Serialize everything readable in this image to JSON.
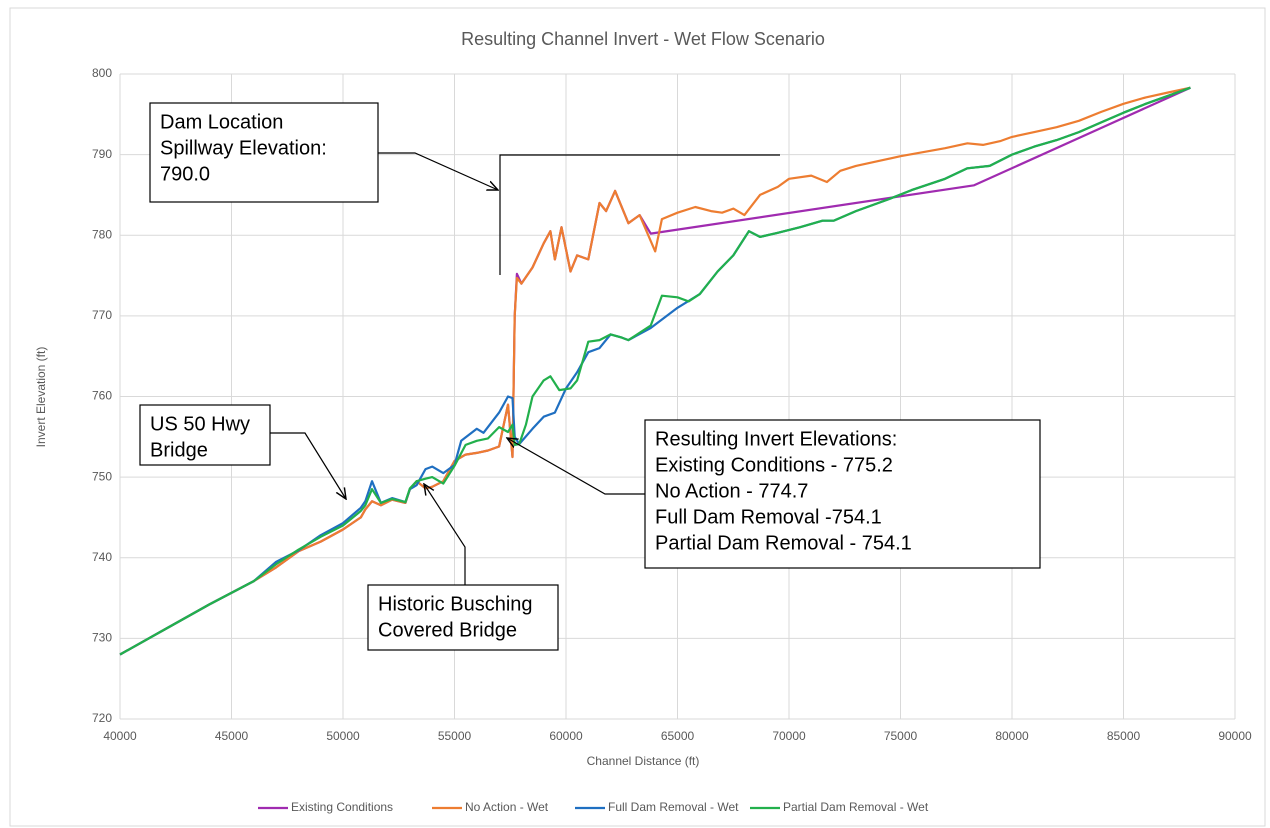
{
  "chart_data": {
    "type": "line",
    "title": "Resulting Channel Invert - Wet Flow Scenario",
    "x_label": "Channel Distance (ft)",
    "y_label": "Invert Elevation (ft)",
    "xlim": [
      40000,
      90000
    ],
    "xticks": [
      40000,
      45000,
      50000,
      55000,
      60000,
      65000,
      70000,
      75000,
      80000,
      85000,
      90000
    ],
    "ylim": [
      720,
      800
    ],
    "yticks": [
      720,
      730,
      740,
      750,
      760,
      770,
      780,
      790,
      800
    ],
    "grid": true,
    "legend": "bottom",
    "series": [
      {
        "name": "Existing Conditions",
        "color": "#a02bb0",
        "x": [
          40000,
          42000,
          44000,
          46000,
          47000,
          48000,
          49000,
          50000,
          50800,
          51000,
          51300,
          51700,
          52200,
          52800,
          53000,
          53300,
          53700,
          54000,
          54500,
          55000,
          55500,
          56000,
          56500,
          57000,
          57400,
          57600,
          57700,
          57800,
          58000,
          58500,
          59000,
          59300,
          59500,
          59800,
          60200,
          60500,
          61000,
          61500,
          61800,
          62200,
          62800,
          63300,
          63800,
          78300,
          88000
        ],
        "values": [
          728,
          731.1,
          734.2,
          737.1,
          738.8,
          740.8,
          742,
          743.5,
          745,
          746,
          747,
          746.5,
          747.2,
          746.8,
          748.5,
          749.5,
          748.6,
          748.8,
          749.5,
          752,
          752.8,
          753,
          753.3,
          753.8,
          759,
          752.5,
          770,
          775.2,
          774,
          776,
          779,
          780.5,
          777,
          781,
          775.5,
          777.5,
          777,
          784,
          783,
          785.5,
          781.5,
          782.5,
          780.2,
          786.2,
          798.3
        ]
      },
      {
        "name": "No Action - Wet",
        "color": "#ed7d31",
        "x": [
          40000,
          42000,
          44000,
          46000,
          47000,
          48000,
          49000,
          50000,
          50800,
          51000,
          51300,
          51700,
          52200,
          52800,
          53000,
          53300,
          53700,
          54000,
          54500,
          55000,
          55500,
          56000,
          56500,
          57000,
          57400,
          57600,
          57700,
          57800,
          58000,
          58500,
          59000,
          59300,
          59500,
          59800,
          60200,
          60500,
          61000,
          61500,
          61800,
          62200,
          62800,
          63300,
          64000,
          64300,
          65000,
          65800,
          66500,
          67000,
          67500,
          68000,
          68700,
          69500,
          70000,
          71000,
          71700,
          72300,
          73000,
          74000,
          75000,
          76000,
          77000,
          78000,
          78700,
          79500,
          80000,
          81000,
          82000,
          83000,
          84000,
          85000,
          86000,
          87000,
          88000
        ],
        "values": [
          728,
          731.1,
          734.2,
          737.1,
          738.8,
          740.8,
          742,
          743.5,
          745,
          746,
          747,
          746.5,
          747.2,
          746.8,
          748.5,
          749.5,
          748.6,
          748.8,
          749.5,
          752,
          752.8,
          753,
          753.3,
          753.8,
          759,
          752.5,
          770,
          774.7,
          774,
          776,
          779,
          780.5,
          777,
          781,
          775.5,
          777.5,
          777,
          784,
          783,
          785.5,
          781.5,
          782.5,
          778,
          782,
          782.8,
          783.5,
          783,
          782.8,
          783.3,
          782.5,
          785,
          786,
          787,
          787.4,
          786.6,
          788,
          788.6,
          789.2,
          789.8,
          790.3,
          790.8,
          791.4,
          791.2,
          791.7,
          792.2,
          792.8,
          793.4,
          794.2,
          795.3,
          796.3,
          797.1,
          797.7,
          798.3
        ]
      },
      {
        "name": "Full Dam Removal - Wet",
        "color": "#1f6fc1",
        "x": [
          40000,
          42000,
          44000,
          46000,
          47000,
          48000,
          49000,
          50000,
          50800,
          51000,
          51300,
          51700,
          52200,
          52800,
          53000,
          53300,
          53700,
          54000,
          54500,
          55000,
          55300,
          56000,
          56300,
          57000,
          57400,
          57600,
          57700,
          57900,
          58500,
          59000,
          59500,
          60000,
          60500,
          61000,
          61500,
          62000,
          62500,
          62800,
          63800,
          65000,
          66000,
          66800,
          67500,
          68200,
          68700,
          69500,
          70500,
          71500,
          72000,
          73000,
          74500,
          75500,
          77000,
          78000,
          79000,
          80000,
          81000,
          82000,
          83000,
          84000,
          85000,
          86000,
          87000,
          88000
        ],
        "values": [
          728,
          731.1,
          734.2,
          737.1,
          739.5,
          740.9,
          742.8,
          744.3,
          746.2,
          747,
          749.5,
          746.8,
          747.4,
          746.9,
          748.5,
          749,
          751,
          751.3,
          750.5,
          751.5,
          754.5,
          756,
          755.5,
          758,
          760,
          759.8,
          755,
          754.1,
          756,
          757.5,
          758,
          761,
          763,
          765.5,
          766,
          767.7,
          767.3,
          767,
          768.5,
          771,
          772.7,
          775.5,
          777.5,
          780.5,
          779.8,
          780.3,
          781,
          781.8,
          781.8,
          783,
          784.5,
          785.6,
          787,
          788.3,
          788.6,
          790,
          791,
          791.8,
          792.8,
          794,
          795.2,
          796.3,
          797.3,
          798.3
        ]
      },
      {
        "name": "Partial Dam Removal - Wet",
        "color": "#22b04c",
        "x": [
          40000,
          42000,
          44000,
          46000,
          47000,
          48000,
          49000,
          50000,
          50800,
          51000,
          51300,
          51700,
          52200,
          52800,
          53000,
          53300,
          53700,
          54000,
          54500,
          55000,
          55500,
          56000,
          56500,
          57000,
          57400,
          57600,
          57700,
          57900,
          58200,
          58500,
          59000,
          59300,
          59700,
          60200,
          60500,
          61000,
          61500,
          62000,
          62500,
          62800,
          63800,
          64300,
          65000,
          65500,
          66000,
          66800,
          67500,
          68200,
          68700,
          69500,
          70500,
          71500,
          72000,
          73000,
          74500,
          75500,
          77000,
          78000,
          79000,
          80000,
          81000,
          82000,
          83000,
          84000,
          85000,
          86000,
          87000,
          88000
        ],
        "values": [
          728,
          731.1,
          734.2,
          737.1,
          739.2,
          741,
          742.6,
          744,
          745.8,
          746.5,
          748.5,
          746.8,
          747.3,
          746.9,
          748.6,
          749.5,
          749.8,
          750,
          749.2,
          751.4,
          754,
          754.5,
          754.8,
          756.2,
          755.6,
          756.5,
          754,
          754.1,
          756.5,
          760,
          762,
          762.5,
          760.8,
          761,
          762,
          766.8,
          767,
          767.7,
          767.3,
          767,
          768.8,
          772.5,
          772.3,
          771.8,
          772.7,
          775.5,
          777.5,
          780.5,
          779.8,
          780.3,
          781,
          781.8,
          781.8,
          783,
          784.5,
          785.6,
          787,
          788.3,
          788.6,
          790,
          791,
          791.8,
          792.8,
          794,
          795.2,
          796.3,
          797.3,
          798.3
        ]
      }
    ],
    "annotations": [
      {
        "lines": [
          "Dam Location",
          "Spillway Elevation:",
          "790.0"
        ]
      },
      {
        "lines": [
          "US 50 Hwy",
          "Bridge"
        ]
      },
      {
        "lines": [
          "Historic Busching",
          "Covered Bridge"
        ]
      },
      {
        "lines": [
          "Resulting Invert Elevations:",
          "Existing Conditions - 775.2",
          "No Action - 774.7",
          "Full Dam Removal -754.1",
          "Partial Dam Removal - 754.1"
        ]
      }
    ]
  }
}
